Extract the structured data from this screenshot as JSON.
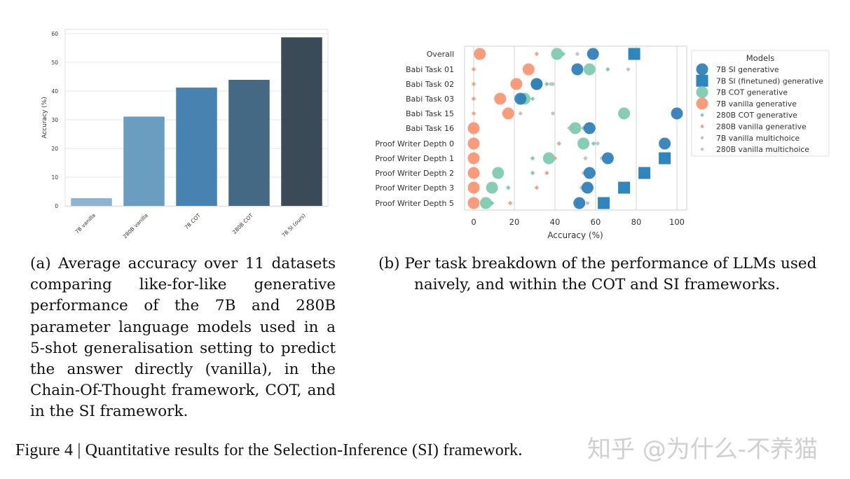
{
  "chart_data": [
    {
      "type": "bar",
      "title": "",
      "xlabel": "",
      "ylabel": "Accuracy (%)",
      "ylim": [
        0,
        62
      ],
      "yticks": [
        0,
        10,
        20,
        30,
        40,
        50,
        60
      ],
      "grid": true,
      "categories": [
        "7B vanilla",
        "280B vanilla",
        "7B COT",
        "280B COT",
        "7B SI (ours)"
      ],
      "values": [
        2.7,
        31.1,
        41.2,
        43.9,
        58.7
      ],
      "colors": [
        "#8fb4cf",
        "#6a9ec1",
        "#4882b0",
        "#436985",
        "#3a4a57"
      ]
    },
    {
      "type": "scatter",
      "title": "",
      "xlabel": "Accuracy (%)",
      "ylabel": "",
      "xlim": [
        -4,
        105
      ],
      "xticks": [
        0,
        20,
        40,
        60,
        80,
        100
      ],
      "grid": true,
      "categories": [
        "Overall",
        "Babi Task 01",
        "Babi Task 02",
        "Babi Task 03",
        "Babi Task 15",
        "Babi Task 16",
        "Proof Writer Depth 0",
        "Proof Writer Depth 1",
        "Proof Writer Depth 2",
        "Proof Writer Depth 3",
        "Proof Writer Depth 5"
      ],
      "legend_title": "Models",
      "legend_position": "right",
      "series": [
        {
          "name": "7B vanilla multichoice",
          "marker": "dot-small",
          "color": "#c4c4c4",
          "values": [
            57,
            null,
            38,
            null,
            39,
            48,
            61,
            63,
            54,
            53,
            56
          ]
        },
        {
          "name": "280B vanilla multichoice",
          "marker": "diamond-small",
          "color": "#c4c4c4",
          "values": [
            51,
            76,
            39,
            null,
            23,
            47,
            null,
            55,
            59,
            58,
            51
          ]
        },
        {
          "name": "280B vanilla generative",
          "marker": "diamond-small",
          "color": "#f4a283",
          "values": [
            31,
            0,
            0,
            0,
            0,
            0,
            42,
            40,
            36,
            31,
            18
          ]
        },
        {
          "name": "280B COT generative",
          "marker": "diamond-small",
          "color": "#7fcdb0",
          "values": [
            44,
            66,
            36,
            29,
            99,
            54,
            59,
            29,
            29,
            17,
            9
          ]
        },
        {
          "name": "7B vanilla generative",
          "marker": "circle",
          "color": "#f99470",
          "values": [
            3,
            27,
            21,
            13,
            17,
            0,
            0,
            0,
            0,
            0,
            0
          ]
        },
        {
          "name": "7B COT generative",
          "marker": "circle",
          "color": "#7ccaad",
          "values": [
            41,
            57,
            31,
            25,
            74,
            50,
            54,
            37,
            12,
            9,
            6
          ]
        },
        {
          "name": "7B SI generative",
          "marker": "circle",
          "color": "#2a7db9",
          "values": [
            58.7,
            51,
            31,
            23,
            100,
            57,
            94,
            66,
            57,
            56,
            52
          ]
        },
        {
          "name": "7B SI (finetuned) generative",
          "marker": "square",
          "color": "#2f86bf",
          "values": [
            79,
            null,
            null,
            null,
            null,
            null,
            null,
            94,
            84,
            74,
            64
          ]
        }
      ],
      "legend_order": [
        "7B SI generative",
        "7B SI (finetuned) generative",
        "7B COT generative",
        "7B vanilla generative",
        "280B COT generative",
        "280B vanilla generative",
        "7B vanilla multichoice",
        "280B vanilla multichoice"
      ]
    }
  ],
  "left_chart": {
    "ylabel": "Accuracy (%)",
    "yticks": [
      "0",
      "10",
      "20",
      "30",
      "40",
      "50",
      "60"
    ],
    "xticks": [
      "7B vanilla",
      "280B vanilla",
      "7B COT",
      "280B COT",
      "7B SI (ours)"
    ]
  },
  "right_chart": {
    "xlabel": "Accuracy (%)",
    "xticks": [
      "0",
      "20",
      "40",
      "60",
      "80",
      "100"
    ],
    "rows": [
      "Overall",
      "Babi Task 01",
      "Babi Task 02",
      "Babi Task 03",
      "Babi Task 15",
      "Babi Task 16",
      "Proof Writer Depth 0",
      "Proof Writer Depth 1",
      "Proof Writer Depth 2",
      "Proof Writer Depth 3",
      "Proof Writer Depth 5"
    ],
    "legend": {
      "title": "Models",
      "items": [
        "7B SI generative",
        "7B SI (finetuned) generative",
        "7B COT generative",
        "7B vanilla generative",
        "280B COT generative",
        "280B vanilla generative",
        "7B vanilla multichoice",
        "280B vanilla multichoice"
      ]
    }
  },
  "captions": {
    "a": "(a)  Average accuracy over 11 datasets comparing like-for-like generative performance of the 7B and 280B parameter language models used in a 5-shot generalisation setting to predict the answer directly (vanilla), in the Chain-Of-Thought framework, COT, and in the SI framework.",
    "b_line1": "(b)  Per task breakdown of the performance of LLMs used",
    "b_line2": "naively, and within the COT and SI frameworks.",
    "figure": "Figure 4 | Quantitative results for the Selection-Inference (SI) framework."
  },
  "watermark": "知乎 @为什么-不养猫"
}
